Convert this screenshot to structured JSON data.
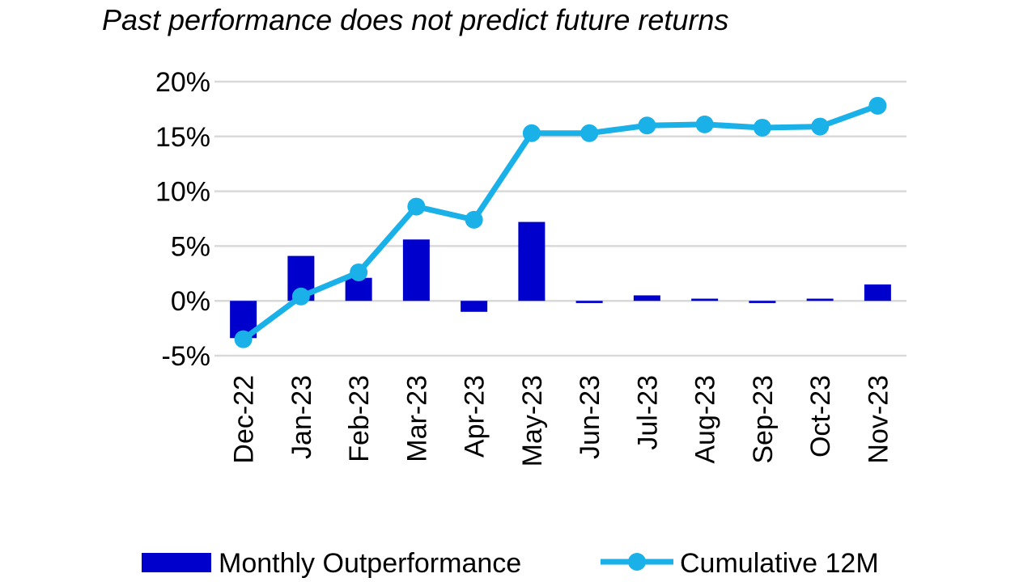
{
  "chart_data": {
    "type": "bar+line",
    "title": "Past performance does not predict future returns",
    "categories": [
      "Dec-22",
      "Jan-23",
      "Feb-23",
      "Mar-23",
      "Apr-23",
      "May-23",
      "Jun-23",
      "Jul-23",
      "Aug-23",
      "Sep-23",
      "Oct-23",
      "Nov-23"
    ],
    "series": [
      {
        "name": "Monthly Outperformance",
        "kind": "bar",
        "color": "#0000CC",
        "values": [
          -3.4,
          4.1,
          2.1,
          5.6,
          -1.0,
          7.2,
          -0.2,
          0.5,
          0.2,
          -0.2,
          0.2,
          1.5
        ]
      },
      {
        "name": "Cumulative 12M",
        "kind": "line",
        "color": "#1AB0E8",
        "values": [
          -3.5,
          0.4,
          2.6,
          8.6,
          7.4,
          15.3,
          15.3,
          16.0,
          16.1,
          15.8,
          15.9,
          17.8
        ]
      }
    ],
    "ylim": [
      -5,
      20
    ],
    "yticks": [
      -5,
      0,
      5,
      10,
      15,
      20
    ],
    "ytick_labels": [
      "-5%",
      "0%",
      "5%",
      "10%",
      "15%",
      "20%"
    ],
    "grid": true,
    "legend_position": "bottom",
    "xlabel": "",
    "ylabel": ""
  }
}
